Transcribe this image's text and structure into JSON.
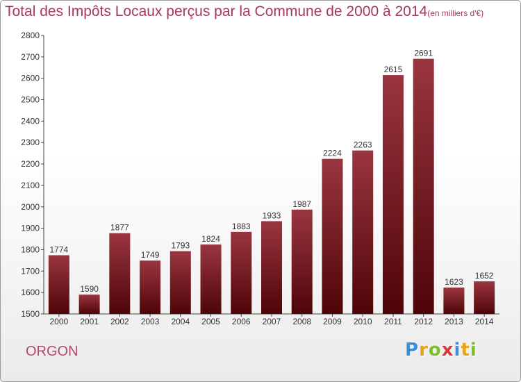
{
  "title": "Total des Impôts Locaux perçus par la Commune de 2000 à 2014",
  "subtitle": "(en milliers d'€)",
  "commune": "ORGON",
  "brand": {
    "letters": [
      "P",
      "r",
      "o",
      "x",
      "i",
      "t",
      "i"
    ],
    "colors": [
      "#3a8fd6",
      "#e8a317",
      "#7bbf2a",
      "#d63a3a",
      "#3a8fd6",
      "#e8a317",
      "#7bbf2a"
    ]
  },
  "chart_data": {
    "type": "bar",
    "categories": [
      "2000",
      "2001",
      "2002",
      "2003",
      "2004",
      "2005",
      "2006",
      "2007",
      "2008",
      "2009",
      "2010",
      "2011",
      "2012",
      "2013",
      "2014"
    ],
    "values": [
      1774,
      1590,
      1877,
      1749,
      1793,
      1824,
      1883,
      1933,
      1987,
      2224,
      2263,
      2615,
      2691,
      1623,
      1652
    ],
    "ylim": [
      1500,
      2800
    ],
    "yticks": [
      1500,
      1600,
      1700,
      1800,
      1900,
      2000,
      2100,
      2200,
      2300,
      2400,
      2500,
      2600,
      2700,
      2800
    ],
    "grid": false,
    "bar_color": "#7a1a22"
  }
}
